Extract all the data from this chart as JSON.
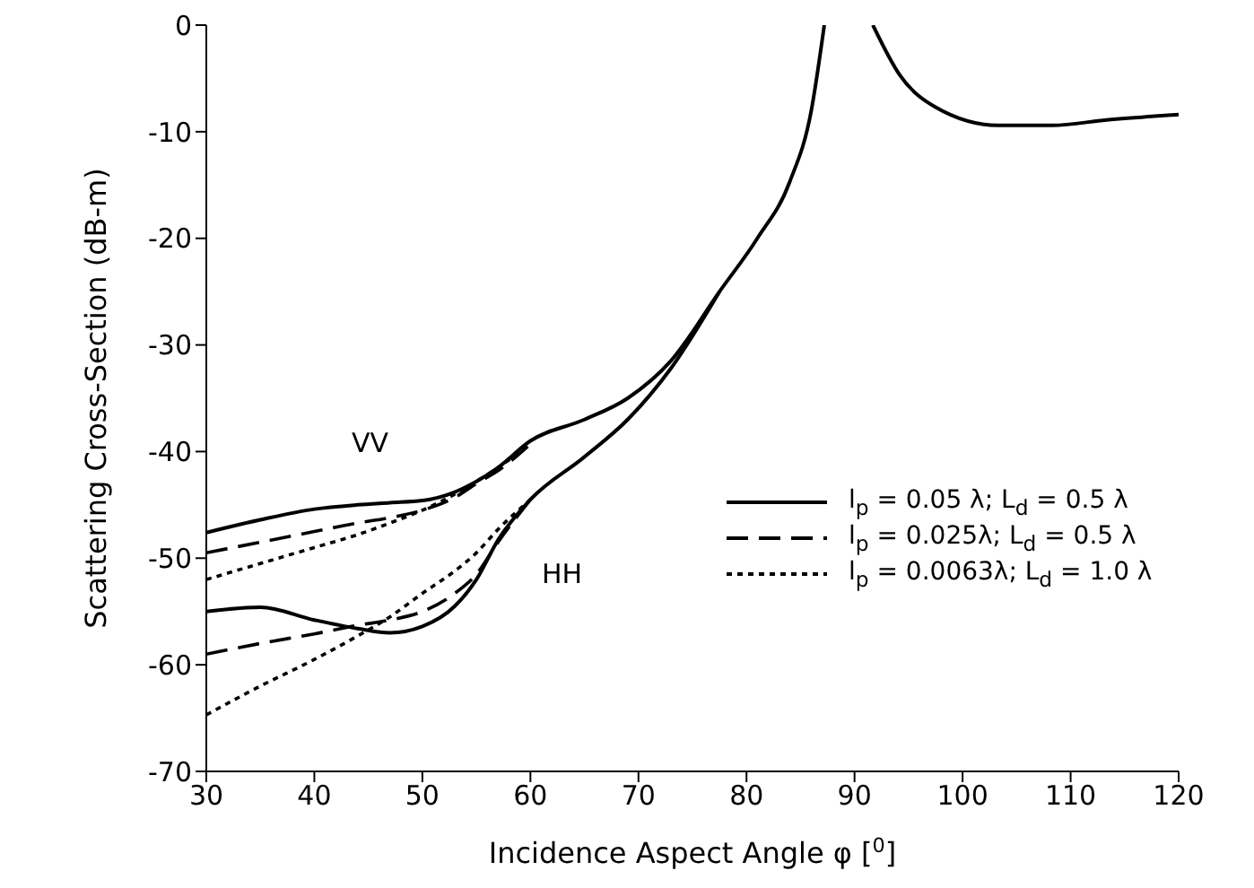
{
  "chart_data": {
    "type": "line",
    "xlabel": "Incidence Aspect Angle φ [$^{0}$]",
    "ylabel": "Scattering Cross-Section (dB-m)",
    "x": [
      30,
      35,
      40,
      44,
      47,
      50,
      53,
      55,
      57,
      60,
      65,
      69,
      73,
      77.5,
      81,
      84,
      86,
      87.2,
      89.5,
      91.7,
      94.2,
      97.5,
      103.3,
      108.3,
      113.3,
      120
    ],
    "xlim": [
      30,
      120
    ],
    "xticks": [
      30,
      40,
      50,
      60,
      70,
      80,
      90,
      100,
      110,
      120
    ],
    "ylim": [
      -70,
      0
    ],
    "yticks": [
      -70,
      -60,
      -50,
      -40,
      -30,
      -20,
      -10,
      0
    ],
    "grid": false,
    "legend": "bottom right",
    "marker": "none",
    "series": [
      {
        "name": "l$_{p}$ = 0.05 λ; L$_{d}$ = 0.5 λ",
        "color": "#000000",
        "line_style": "solid",
        "values": [
          -47.6,
          -46.4,
          -45.4,
          -45,
          -44.8,
          -44.6,
          -43.8,
          -42.8,
          -41.5,
          -39,
          -37,
          -35,
          -31.5,
          -25,
          -20,
          -14.7,
          -8,
          0,
          null,
          0,
          -4.7,
          -7.7,
          -9.4,
          -9.4,
          -8.9,
          -8.4
        ]
      },
      {
        "name": "l$_{p}$ = 0.025λ; L$_{d}$ = 0.5 λ",
        "color": "#000000",
        "line_style": "dashed",
        "values": [
          -49.5,
          -48.5,
          -47.5,
          -46.7,
          -46.2,
          -45.5,
          -44.3,
          -43,
          -41.8,
          -39.3,
          null,
          null,
          null,
          null,
          null,
          null,
          null,
          null,
          null,
          null,
          null,
          null,
          null,
          null,
          null,
          null
        ]
      },
      {
        "name": "l$_{p}$ = 0.0063λ; L$_{d}$ = 1.0 λ",
        "color": "#000000",
        "line_style": "dotted",
        "values": [
          -52,
          -50.5,
          -49,
          -47.8,
          -46.7,
          -45.5,
          -44,
          -42.8,
          -41.5,
          -39.3,
          null,
          null,
          null,
          null,
          null,
          null,
          null,
          null,
          null,
          null,
          null,
          null,
          null,
          null,
          null,
          null
        ]
      },
      {
        "color": "#000000",
        "line_style": "solid",
        "values": [
          -55,
          -54.6,
          -55.8,
          -56.6,
          -57,
          -56.4,
          -54.5,
          -52,
          -48.3,
          -44.5,
          -40.5,
          -37,
          -32.2,
          -25,
          null,
          null,
          null,
          null,
          null,
          null,
          null,
          null,
          null,
          null,
          null,
          null
        ]
      },
      {
        "color": "#000000",
        "line_style": "dashed",
        "values": [
          -59,
          -58,
          -57.1,
          -56.3,
          -55.8,
          -55,
          -53.3,
          -51.5,
          -48.5,
          -44.5,
          null,
          null,
          null,
          null,
          null,
          null,
          null,
          null,
          null,
          null,
          null,
          null,
          null,
          null,
          null,
          null
        ]
      },
      {
        "color": "#000000",
        "line_style": "dotted",
        "values": [
          -64.7,
          -62,
          -59.5,
          -57.3,
          -55.5,
          -53.3,
          -51.2,
          -49.5,
          -47.3,
          -44.5,
          null,
          null,
          null,
          null,
          null,
          null,
          null,
          null,
          null,
          null,
          null,
          null,
          null,
          null,
          null,
          null
        ]
      }
    ],
    "annotations": [
      "VV",
      "HH"
    ]
  }
}
